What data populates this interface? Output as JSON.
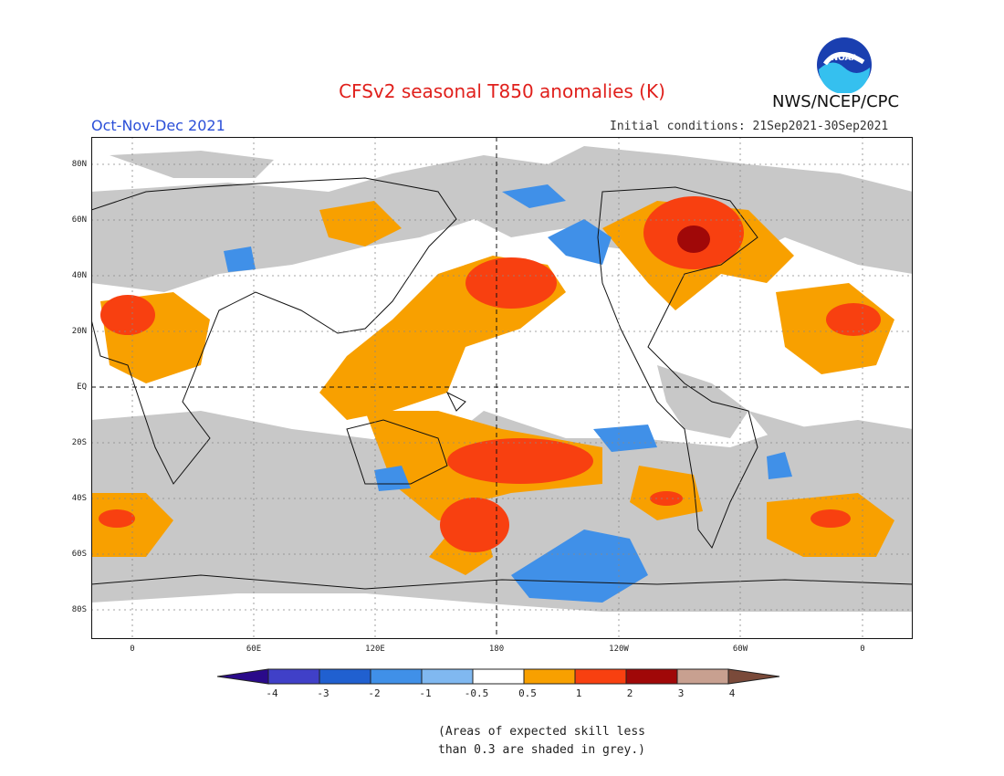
{
  "header": {
    "title": "CFSv2 seasonal T850 anomalies (K)",
    "period": "Oct-Nov-Dec 2021",
    "initial_conditions": "Initial conditions: 21Sep2021-30Sep2021",
    "agency": "NWS/NCEP/CPC",
    "logo_text": "NOAA"
  },
  "axes": {
    "lat_labels": [
      "80N",
      "60N",
      "40N",
      "20N",
      "EQ",
      "20S",
      "40S",
      "60S",
      "80S"
    ],
    "lon_labels": [
      "0",
      "60E",
      "120E",
      "180",
      "120W",
      "60W",
      "0"
    ]
  },
  "legend": {
    "labels": [
      "-4",
      "-3",
      "-2",
      "-1",
      "-0.5",
      "0.5",
      "1",
      "2",
      "3",
      "4"
    ],
    "colors": [
      "#2a0a8a",
      "#4040c8",
      "#2060d0",
      "#4090e8",
      "#80b8f0",
      "#ffffff",
      "#f8a000",
      "#f84010",
      "#a00808",
      "#c8a090",
      "#7a4a3a"
    ]
  },
  "note": {
    "line1": "(Areas of expected skill less",
    "line2": "than 0.3 are shaded in grey.)"
  },
  "colors": {
    "skill_grey": "#c8c8c8",
    "title_red": "#e0201c",
    "period_blue": "#2b4fd8"
  }
}
